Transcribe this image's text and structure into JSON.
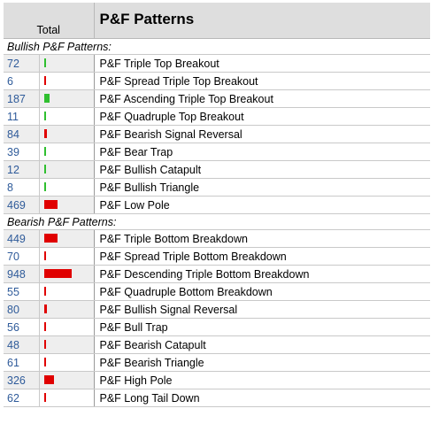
{
  "header": {
    "total_label": "Total",
    "title": "P&F Patterns"
  },
  "colors": {
    "bullish": "#2fbf2f",
    "bearish": "#e00000"
  },
  "max_count": 948,
  "sections": [
    {
      "label": "Bullish P&F Patterns:",
      "type": "bullish",
      "rows": [
        {
          "count": "72",
          "value": 72,
          "name": "P&F Triple Top Breakout"
        },
        {
          "count": "6",
          "value": 6,
          "name": "P&F Spread Triple Top Breakout",
          "bar_color": "#e00000"
        },
        {
          "count": "187",
          "value": 187,
          "name": "P&F Ascending Triple Top Breakout"
        },
        {
          "count": "11",
          "value": 11,
          "name": "P&F Quadruple Top Breakout"
        },
        {
          "count": "84",
          "value": 84,
          "name": "P&F Bearish Signal Reversal",
          "bar_color": "#e00000"
        },
        {
          "count": "39",
          "value": 39,
          "name": "P&F Bear Trap"
        },
        {
          "count": "12",
          "value": 12,
          "name": "P&F Bullish Catapult"
        },
        {
          "count": "8",
          "value": 8,
          "name": "P&F Bullish Triangle"
        },
        {
          "count": "469",
          "value": 469,
          "name": "P&F Low Pole",
          "bar_color": "#e00000"
        }
      ]
    },
    {
      "label": "Bearish P&F Patterns:",
      "type": "bearish",
      "rows": [
        {
          "count": "449",
          "value": 449,
          "name": "P&F Triple Bottom Breakdown"
        },
        {
          "count": "70",
          "value": 70,
          "name": "P&F Spread Triple Bottom Breakdown"
        },
        {
          "count": "948",
          "value": 948,
          "name": "P&F Descending Triple Bottom Breakdown"
        },
        {
          "count": "55",
          "value": 55,
          "name": "P&F Quadruple Bottom Breakdown"
        },
        {
          "count": "80",
          "value": 80,
          "name": "P&F Bullish Signal Reversal"
        },
        {
          "count": "56",
          "value": 56,
          "name": "P&F Bull Trap"
        },
        {
          "count": "48",
          "value": 48,
          "name": "P&F Bearish Catapult"
        },
        {
          "count": "61",
          "value": 61,
          "name": "P&F Bearish Triangle"
        },
        {
          "count": "326",
          "value": 326,
          "name": "P&F High Pole"
        },
        {
          "count": "62",
          "value": 62,
          "name": "P&F Long Tail Down"
        }
      ]
    }
  ]
}
